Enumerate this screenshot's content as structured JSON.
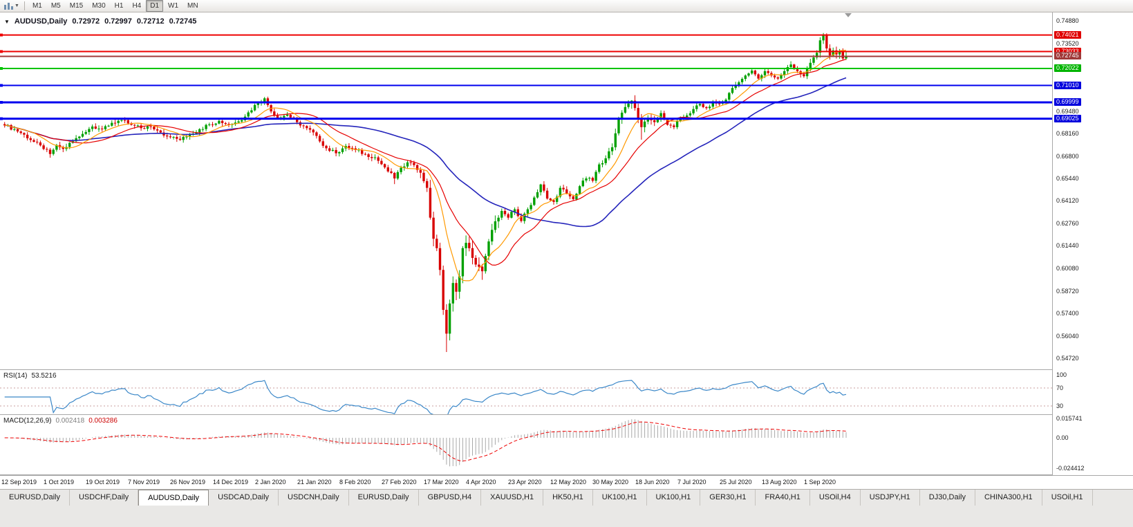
{
  "toolbar": {
    "timeframes": [
      "M1",
      "M5",
      "M15",
      "M30",
      "H1",
      "H4",
      "D1",
      "W1",
      "MN"
    ],
    "active_timeframe": "D1"
  },
  "chart_header": {
    "symbol": "AUDUSD,Daily",
    "open": "0.72972",
    "high": "0.72997",
    "low": "0.72712",
    "close": "0.72745"
  },
  "price_axis": {
    "ticks": [
      "0.74880",
      "0.73520",
      "0.69480",
      "0.68160",
      "0.66800",
      "0.65440",
      "0.64120",
      "0.62760",
      "0.61440",
      "0.60080",
      "0.58720",
      "0.57400",
      "0.56040",
      "0.54720"
    ]
  },
  "rsi_panel": {
    "title": "RSI(14)",
    "value": "53.5216",
    "axis_labels": [
      "100",
      "70",
      "30"
    ]
  },
  "macd_panel": {
    "title": "MACD(12,26,9)",
    "main_value": "0.002418",
    "signal_value": "0.003286",
    "axis_labels": [
      "0.015741",
      "0.00",
      "-0.024412"
    ]
  },
  "time_axis": {
    "labels": [
      "12 Sep 2019",
      "1 Oct 2019",
      "19 Oct 2019",
      "7 Nov 2019",
      "26 Nov 2019",
      "14 Dec 2019",
      "2 Jan 2020",
      "21 Jan 2020",
      "8 Feb 2020",
      "27 Feb 2020",
      "17 Mar 2020",
      "4 Apr 2020",
      "23 Apr 2020",
      "12 May 2020",
      "30 May 2020",
      "18 Jun 2020",
      "7 Jul 2020",
      "25 Jul 2020",
      "13 Aug 2020",
      "1 Sep 2020"
    ]
  },
  "tabs": {
    "items": [
      "EURUSD,Daily",
      "USDCHF,Daily",
      "AUDUSD,Daily",
      "USDCAD,Daily",
      "USDCNH,Daily",
      "EURUSD,Daily",
      "GBPUSD,H4",
      "XAUUSD,H1",
      "HK50,H1",
      "UK100,H1",
      "UK100,H1",
      "GER30,H1",
      "FRA40,H1",
      "USOil,H4",
      "USDJPY,H1",
      "DJ30,Daily",
      "CHINA300,H1",
      "USOil,H1"
    ],
    "active_index": 2
  },
  "chart_data": {
    "type": "candlestick",
    "symbol": "AUDUSD",
    "timeframe": "Daily",
    "bars_count": 260,
    "last_quote": {
      "open": 0.72972,
      "high": 0.72997,
      "low": 0.72712,
      "close": 0.72745
    },
    "y_range": {
      "max": 0.752,
      "min": 0.544
    },
    "levels": [
      {
        "label": "0.74021",
        "price": 0.74021,
        "line_color": "#ee0000",
        "label_bg": "#e00000",
        "thickness": 2,
        "kind": "resistance"
      },
      {
        "label": "0.73033",
        "price": 0.73033,
        "line_color": "#ee0000",
        "label_bg": "#e00000",
        "thickness": 2,
        "kind": "resistance"
      },
      {
        "label": "0.72745",
        "price": 0.72745,
        "line_color": "#a03a3a",
        "label_bg": "#a03a3a",
        "thickness": 2,
        "kind": "bid"
      },
      {
        "label": "0.72022",
        "price": 0.72022,
        "line_color": "#00c400",
        "label_bg": "#00b400",
        "thickness": 2,
        "kind": "support"
      },
      {
        "label": "0.71010",
        "price": 0.7101,
        "line_color": "#0000ee",
        "label_bg": "#0000dd",
        "thickness": 2,
        "kind": "support"
      },
      {
        "label": "0.69999",
        "price": 0.69999,
        "line_color": "#0000ee",
        "label_bg": "#0000dd",
        "thickness": 3,
        "kind": "support"
      },
      {
        "label": "0.69025",
        "price": 0.69025,
        "line_color": "#0000ee",
        "label_bg": "#0000dd",
        "thickness": 3,
        "kind": "support"
      }
    ],
    "moving_averages": [
      {
        "name": "fast",
        "period": 10,
        "color": "#ff9900"
      },
      {
        "name": "medium",
        "period": 20,
        "color": "#e60000"
      },
      {
        "name": "slow",
        "period": 50,
        "color": "#2424bb"
      }
    ],
    "indicators": {
      "rsi": {
        "period": 14,
        "levels": [
          70,
          30
        ],
        "line_color": "#3a87c8",
        "level_color": "#c89c9c",
        "last_value": 53.5216
      },
      "macd": {
        "fast": 12,
        "slow": 26,
        "signal": 9,
        "hist_color": "#a8a8a8",
        "signal_color": "#ee0000",
        "last_main": 0.002418,
        "last_signal": 0.003286,
        "axis_max": 0.015741,
        "axis_min": -0.024412
      }
    },
    "colors": {
      "up": "#00a000",
      "down": "#d80000",
      "background": "#ffffff"
    },
    "anchors": [
      [
        0,
        0.6862
      ],
      [
        3,
        0.684
      ],
      [
        6,
        0.6807
      ],
      [
        9,
        0.6765
      ],
      [
        12,
        0.6722
      ],
      [
        14,
        0.6692
      ],
      [
        16,
        0.6745
      ],
      [
        18,
        0.6722
      ],
      [
        21,
        0.6768
      ],
      [
        24,
        0.6812
      ],
      [
        27,
        0.6856
      ],
      [
        30,
        0.684
      ],
      [
        33,
        0.6878
      ],
      [
        36,
        0.6894
      ],
      [
        39,
        0.6866
      ],
      [
        42,
        0.6846
      ],
      [
        45,
        0.6856
      ],
      [
        48,
        0.682
      ],
      [
        51,
        0.6792
      ],
      [
        54,
        0.6776
      ],
      [
        57,
        0.6806
      ],
      [
        60,
        0.684
      ],
      [
        63,
        0.6868
      ],
      [
        66,
        0.689
      ],
      [
        69,
        0.6866
      ],
      [
        72,
        0.6886
      ],
      [
        75,
        0.694
      ],
      [
        78,
        0.7
      ],
      [
        80,
        0.7024
      ],
      [
        82,
        0.6946
      ],
      [
        84,
        0.6906
      ],
      [
        87,
        0.6926
      ],
      [
        90,
        0.6882
      ],
      [
        93,
        0.6846
      ],
      [
        96,
        0.68
      ],
      [
        99,
        0.6726
      ],
      [
        102,
        0.6696
      ],
      [
        105,
        0.674
      ],
      [
        108,
        0.6716
      ],
      [
        111,
        0.669
      ],
      [
        114,
        0.6672
      ],
      [
        117,
        0.6612
      ],
      [
        120,
        0.6546
      ],
      [
        122,
        0.661
      ],
      [
        124,
        0.6642
      ],
      [
        126,
        0.6626
      ],
      [
        128,
        0.658
      ],
      [
        130,
        0.649
      ],
      [
        131,
        0.6312
      ],
      [
        132,
        0.6186
      ],
      [
        133,
        0.613
      ],
      [
        134,
        0.6
      ],
      [
        135,
        0.5762
      ],
      [
        136,
        0.562
      ],
      [
        137,
        0.58
      ],
      [
        138,
        0.5922
      ],
      [
        139,
        0.587
      ],
      [
        140,
        0.5962
      ],
      [
        141,
        0.613
      ],
      [
        142,
        0.6162
      ],
      [
        143,
        0.613
      ],
      [
        145,
        0.6032
      ],
      [
        147,
        0.5992
      ],
      [
        149,
        0.617
      ],
      [
        151,
        0.629
      ],
      [
        153,
        0.6352
      ],
      [
        155,
        0.6312
      ],
      [
        157,
        0.6362
      ],
      [
        159,
        0.6292
      ],
      [
        161,
        0.6362
      ],
      [
        163,
        0.6432
      ],
      [
        165,
        0.651
      ],
      [
        167,
        0.6426
      ],
      [
        169,
        0.6406
      ],
      [
        171,
        0.649
      ],
      [
        173,
        0.6456
      ],
      [
        175,
        0.6422
      ],
      [
        177,
        0.65
      ],
      [
        179,
        0.6546
      ],
      [
        181,
        0.6532
      ],
      [
        183,
        0.663
      ],
      [
        185,
        0.6666
      ],
      [
        187,
        0.6732
      ],
      [
        189,
        0.69
      ],
      [
        191,
        0.6972
      ],
      [
        193,
        0.701
      ],
      [
        195,
        0.6902
      ],
      [
        196,
        0.6852
      ],
      [
        198,
        0.6906
      ],
      [
        200,
        0.6882
      ],
      [
        202,
        0.6936
      ],
      [
        204,
        0.6866
      ],
      [
        206,
        0.6852
      ],
      [
        208,
        0.6906
      ],
      [
        210,
        0.6922
      ],
      [
        212,
        0.696
      ],
      [
        214,
        0.699
      ],
      [
        216,
        0.6966
      ],
      [
        218,
        0.7
      ],
      [
        220,
        0.6992
      ],
      [
        222,
        0.7016
      ],
      [
        224,
        0.7086
      ],
      [
        226,
        0.712
      ],
      [
        228,
        0.716
      ],
      [
        230,
        0.719
      ],
      [
        232,
        0.7142
      ],
      [
        234,
        0.7186
      ],
      [
        236,
        0.716
      ],
      [
        238,
        0.7142
      ],
      [
        240,
        0.7186
      ],
      [
        242,
        0.7226
      ],
      [
        244,
        0.7186
      ],
      [
        246,
        0.7156
      ],
      [
        248,
        0.7236
      ],
      [
        250,
        0.7296
      ],
      [
        251,
        0.737
      ],
      [
        252,
        0.74
      ],
      [
        253,
        0.7322
      ],
      [
        254,
        0.728
      ],
      [
        255,
        0.731
      ],
      [
        256,
        0.7286
      ],
      [
        257,
        0.7306
      ],
      [
        258,
        0.7262
      ],
      [
        259,
        0.72745
      ]
    ],
    "wick_overrides": {
      "14": {
        "low": 0.667
      },
      "80": {
        "high": 0.7032
      },
      "120": {
        "low": 0.6512
      },
      "136": {
        "low": 0.551
      },
      "193": {
        "high": 0.7013
      },
      "196": {
        "low": 0.6777
      },
      "252": {
        "high": 0.7414
      }
    }
  }
}
